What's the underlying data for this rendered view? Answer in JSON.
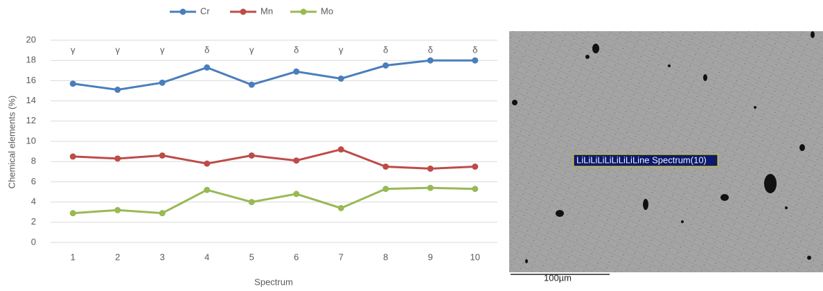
{
  "chart_data": {
    "type": "line",
    "x_label": "Spectrum",
    "y_label": "Chemical elements (%)",
    "categories": [
      "1",
      "2",
      "3",
      "4",
      "5",
      "6",
      "7",
      "8",
      "9",
      "10"
    ],
    "phase_labels": [
      "γ",
      "γ",
      "γ",
      "δ",
      "γ",
      "δ",
      "γ",
      "δ",
      "δ",
      "δ"
    ],
    "series": [
      {
        "name": "Cr",
        "color": "#4a7ebb",
        "values": [
          15.7,
          15.1,
          15.8,
          17.3,
          15.6,
          16.9,
          16.2,
          17.5,
          18.0,
          18.0
        ]
      },
      {
        "name": "Mn",
        "color": "#be4b48",
        "values": [
          8.5,
          8.3,
          8.6,
          7.8,
          8.6,
          8.1,
          9.2,
          7.5,
          7.3,
          7.5
        ]
      },
      {
        "name": "Mo",
        "color": "#98b954",
        "values": [
          2.9,
          3.2,
          2.9,
          5.2,
          4.0,
          4.8,
          3.4,
          5.3,
          5.4,
          5.3
        ]
      }
    ],
    "ylim": [
      0,
      20
    ],
    "yticks": [
      0,
      2,
      4,
      6,
      8,
      10,
      12,
      14,
      16,
      18,
      20
    ],
    "grid": true,
    "legend": "top"
  },
  "micrograph": {
    "label": "LiLiLiLiLiLiLiLiLine Spectrum(10)",
    "scale_bar": "100µm"
  }
}
